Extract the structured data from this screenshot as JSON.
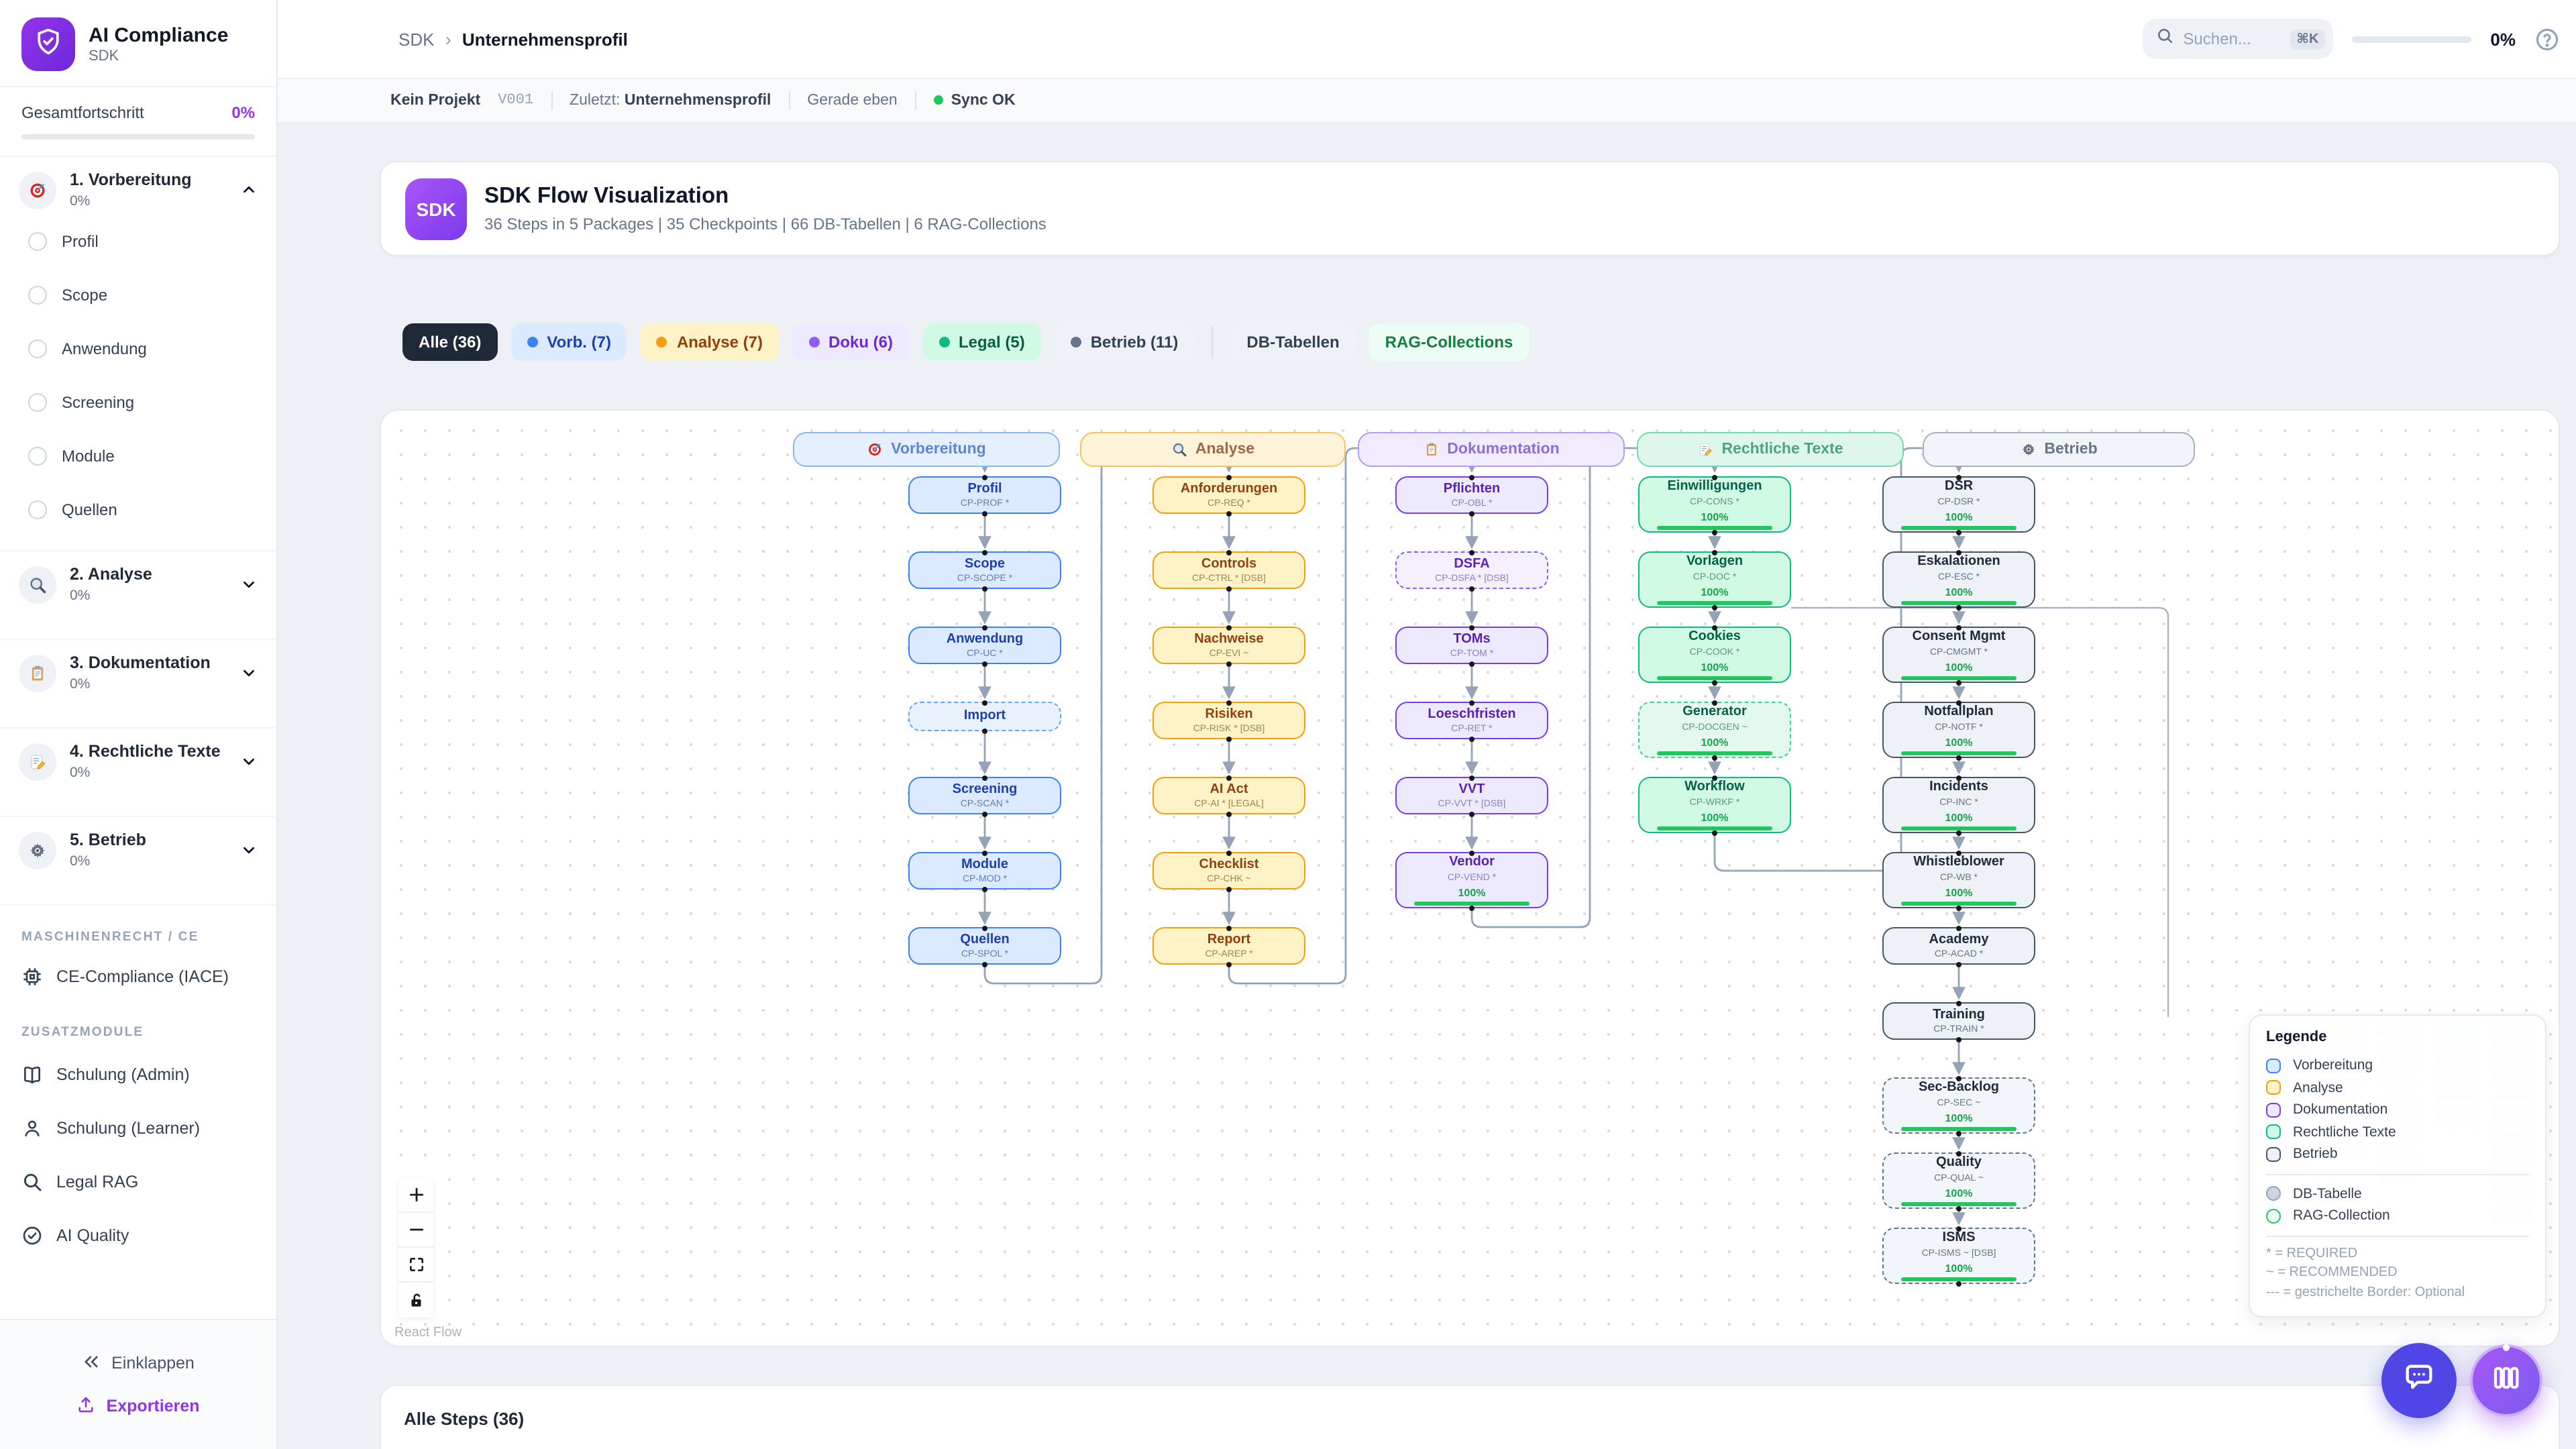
{
  "accent_color": "#9333ea",
  "sidebar": {
    "app_title": "AI Compliance",
    "app_subtitle": "SDK",
    "overall": {
      "label": "Gesamtfortschritt",
      "value": "0%"
    },
    "packages": [
      {
        "label": "1. Vorbereitung",
        "progress": "0%",
        "icon": "target",
        "expanded": true,
        "children": [
          "Profil",
          "Scope",
          "Anwendung",
          "Screening",
          "Module",
          "Quellen"
        ]
      },
      {
        "label": "2. Analyse",
        "progress": "0%",
        "icon": "magnifier",
        "expanded": false
      },
      {
        "label": "3. Dokumentation",
        "progress": "0%",
        "icon": "clipboard",
        "expanded": false
      },
      {
        "label": "4. Rechtliche Texte",
        "progress": "0%",
        "icon": "memo",
        "expanded": false
      },
      {
        "label": "5. Betrieb",
        "progress": "0%",
        "icon": "gear",
        "expanded": false
      }
    ],
    "sections": {
      "machine": "MASCHINENRECHT / CE",
      "addons": "ZUSATZMODULE"
    },
    "machine_items": [
      {
        "label": "CE-Compliance (IACE)",
        "icon": "chip"
      }
    ],
    "addon_items": [
      {
        "label": "Schulung (Admin)",
        "icon": "book"
      },
      {
        "label": "Schulung (Learner)",
        "icon": "user"
      },
      {
        "label": "Legal RAG",
        "icon": "search"
      },
      {
        "label": "AI Quality",
        "icon": "check-circle"
      }
    ],
    "footer": {
      "collapse": "Einklappen",
      "export": "Exportieren"
    }
  },
  "topbar": {
    "breadcrumb": [
      "SDK",
      "Unternehmensprofil"
    ],
    "search_placeholder": "Suchen...",
    "search_shortcut": "⌘K",
    "progress": "0%"
  },
  "statusbar": {
    "project": "Kein Projekt",
    "version": "V001",
    "last_label": "Zuletzt:",
    "last_value": "Unternehmensprofil",
    "freshness": "Gerade eben",
    "sync": "Sync OK",
    "sync_color": "#22c55e"
  },
  "flow_header": {
    "badge": "SDK",
    "title": "SDK Flow Visualization",
    "subtitle": "36 Steps in 5 Packages | 35 Checkpoints | 66 DB-Tabellen | 6 RAG-Collections"
  },
  "filters": [
    {
      "label": "Alle (36)",
      "bg": "#1f2937",
      "fg": "#ffffff"
    },
    {
      "label": "Vorb. (7)",
      "dot": "#3b82f6",
      "bg": "#dbeafe",
      "fg": "#1e40af"
    },
    {
      "label": "Analyse (7)",
      "dot": "#f59e0b",
      "bg": "#fef3c7",
      "fg": "#92400e"
    },
    {
      "label": "Doku (6)",
      "dot": "#8b5cf6",
      "bg": "#ede9fe",
      "fg": "#6d28d9"
    },
    {
      "label": "Legal (5)",
      "dot": "#10b981",
      "bg": "#d1fae5",
      "fg": "#065f46"
    },
    {
      "label": "Betrieb (11)",
      "dot": "#64748b",
      "bg": "#eef2f7",
      "fg": "#334155"
    },
    {
      "divider": true
    },
    {
      "label": "DB-Tabellen",
      "bg": "#eef2f7",
      "fg": "#334155"
    },
    {
      "label": "RAG-Collections",
      "bg": "#ecfdf5",
      "fg": "#15803d"
    }
  ],
  "flow": {
    "columns": [
      {
        "key": "vorbereitung",
        "label": "Vorbereitung",
        "icon": "target",
        "colors": {
          "bg": "#dbeafe",
          "border": "#3b82f6",
          "title": "#1e40af",
          "code": "#5f7bb8",
          "head_bg": "#e6effd",
          "head_border": "#8ab5f7",
          "head_text": "#5c85d6",
          "dash_bg": "#e9f1fd",
          "dash_border": "#60a5fa"
        },
        "nodes": [
          {
            "t": "Profil",
            "c": "CP-PROF *"
          },
          {
            "t": "Scope",
            "c": "CP-SCOPE *"
          },
          {
            "t": "Anwendung",
            "c": "CP-UC *"
          },
          {
            "t": "Import",
            "dashed": true
          },
          {
            "t": "Screening",
            "c": "CP-SCAN *"
          },
          {
            "t": "Module",
            "c": "CP-MOD *"
          },
          {
            "t": "Quellen",
            "c": "CP-SPOL *"
          }
        ]
      },
      {
        "key": "analyse",
        "label": "Analyse",
        "icon": "magnifier",
        "colors": {
          "bg": "#fef3c7",
          "border": "#f59e0b",
          "title": "#92400e",
          "code": "#a1824a",
          "head_bg": "#fdf3d8",
          "head_border": "#f6c45c",
          "head_text": "#a1664a",
          "dash_bg": "#fdf6db",
          "dash_border": "#f5b942"
        },
        "nodes": [
          {
            "t": "Anforderungen",
            "c": "CP-REQ *"
          },
          {
            "t": "Controls",
            "c": "CP-CTRL * [DSB]"
          },
          {
            "t": "Nachweise",
            "c": "CP-EVI ~"
          },
          {
            "t": "Risiken",
            "c": "CP-RISK * [DSB]"
          },
          {
            "t": "AI Act",
            "c": "CP-AI * [LEGAL]"
          },
          {
            "t": "Checklist",
            "c": "CP-CHK ~"
          },
          {
            "t": "Report",
            "c": "CP-AREP *"
          }
        ]
      },
      {
        "key": "dokumentation",
        "label": "Dokumentation",
        "icon": "clipboard",
        "colors": {
          "bg": "#ede9fe",
          "border": "#7c3aed",
          "title": "#5b21b6",
          "code": "#8e7fc0",
          "head_bg": "#f1ecfd",
          "head_border": "#b49bf8",
          "head_text": "#8d6fd0",
          "dash_bg": "#f4f0fe",
          "dash_border": "#8b5cf6"
        },
        "nodes": [
          {
            "t": "Pflichten",
            "c": "CP-OBL *"
          },
          {
            "t": "DSFA",
            "c": "CP-DSFA * [DSB]",
            "dashed": true
          },
          {
            "t": "TOMs",
            "c": "CP-TOM *"
          },
          {
            "t": "Loeschfristen",
            "c": "CP-RET *"
          },
          {
            "t": "VVT",
            "c": "CP-VVT * [DSB]"
          },
          {
            "t": "Vendor",
            "c": "CP-VEND *",
            "progress": "100%"
          }
        ]
      },
      {
        "key": "legal",
        "label": "Rechtliche Texte",
        "icon": "memo",
        "colors": {
          "bg": "#d1fae5",
          "border": "#10b981",
          "title": "#065f46",
          "code": "#5f9679",
          "head_bg": "#def7ea",
          "head_border": "#6fdcb0",
          "head_text": "#4da580",
          "dash_bg": "#e4f9ee",
          "dash_border": "#34d399"
        },
        "nodes": [
          {
            "t": "Einwilligungen",
            "c": "CP-CONS *",
            "progress": "100%"
          },
          {
            "t": "Vorlagen",
            "c": "CP-DOC *",
            "progress": "100%"
          },
          {
            "t": "Cookies",
            "c": "CP-COOK *",
            "progress": "100%"
          },
          {
            "t": "Generator",
            "c": "CP-DOCGEN ~",
            "progress": "100%",
            "dashed": true
          },
          {
            "t": "Workflow",
            "c": "CP-WRKF *",
            "progress": "100%"
          }
        ]
      },
      {
        "key": "betrieb",
        "label": "Betrieb",
        "icon": "gear",
        "colors": {
          "bg": "#eef2f7",
          "border": "#475569",
          "title": "#1e293b",
          "code": "#64748b",
          "head_bg": "#f1f4f9",
          "head_border": "#a6b1c2",
          "head_text": "#64748b",
          "dash_bg": "#f2f5f9",
          "dash_border": "#64748b"
        },
        "nodes": [
          {
            "t": "DSR",
            "c": "CP-DSR *",
            "progress": "100%"
          },
          {
            "t": "Eskalationen",
            "c": "CP-ESC *",
            "progress": "100%"
          },
          {
            "t": "Consent Mgmt",
            "c": "CP-CMGMT *",
            "progress": "100%"
          },
          {
            "t": "Notfallplan",
            "c": "CP-NOTF *",
            "progress": "100%"
          },
          {
            "t": "Incidents",
            "c": "CP-INC *",
            "progress": "100%"
          },
          {
            "t": "Whistleblower",
            "c": "CP-WB *",
            "progress": "100%"
          },
          {
            "t": "Academy",
            "c": "CP-ACAD *"
          },
          {
            "t": "Training",
            "c": "CP-TRAIN *"
          },
          {
            "t": "Sec-Backlog",
            "c": "CP-SEC ~",
            "progress": "100%",
            "dashed": true
          },
          {
            "t": "Quality",
            "c": "CP-QUAL ~",
            "progress": "100%",
            "dashed": true
          },
          {
            "t": "ISMS",
            "c": "CP-ISMS ~ [DSB]",
            "progress": "100%",
            "dashed": true
          }
        ]
      }
    ]
  },
  "legend": {
    "title": "Legende",
    "db_label": "DB-Tabelle",
    "db_fill": "#cbd5e1",
    "db_border": "#94a3b8",
    "rag_label": "RAG-Collection",
    "rag_fill": "#f0fdf4",
    "rag_border": "#22c55e",
    "notes": [
      "* = REQUIRED",
      "~ = RECOMMENDED",
      "--- = gestrichelte Border: Optional"
    ]
  },
  "controls": {
    "attribution": "React Flow"
  },
  "bottom": {
    "title": "Alle Steps (36)"
  }
}
